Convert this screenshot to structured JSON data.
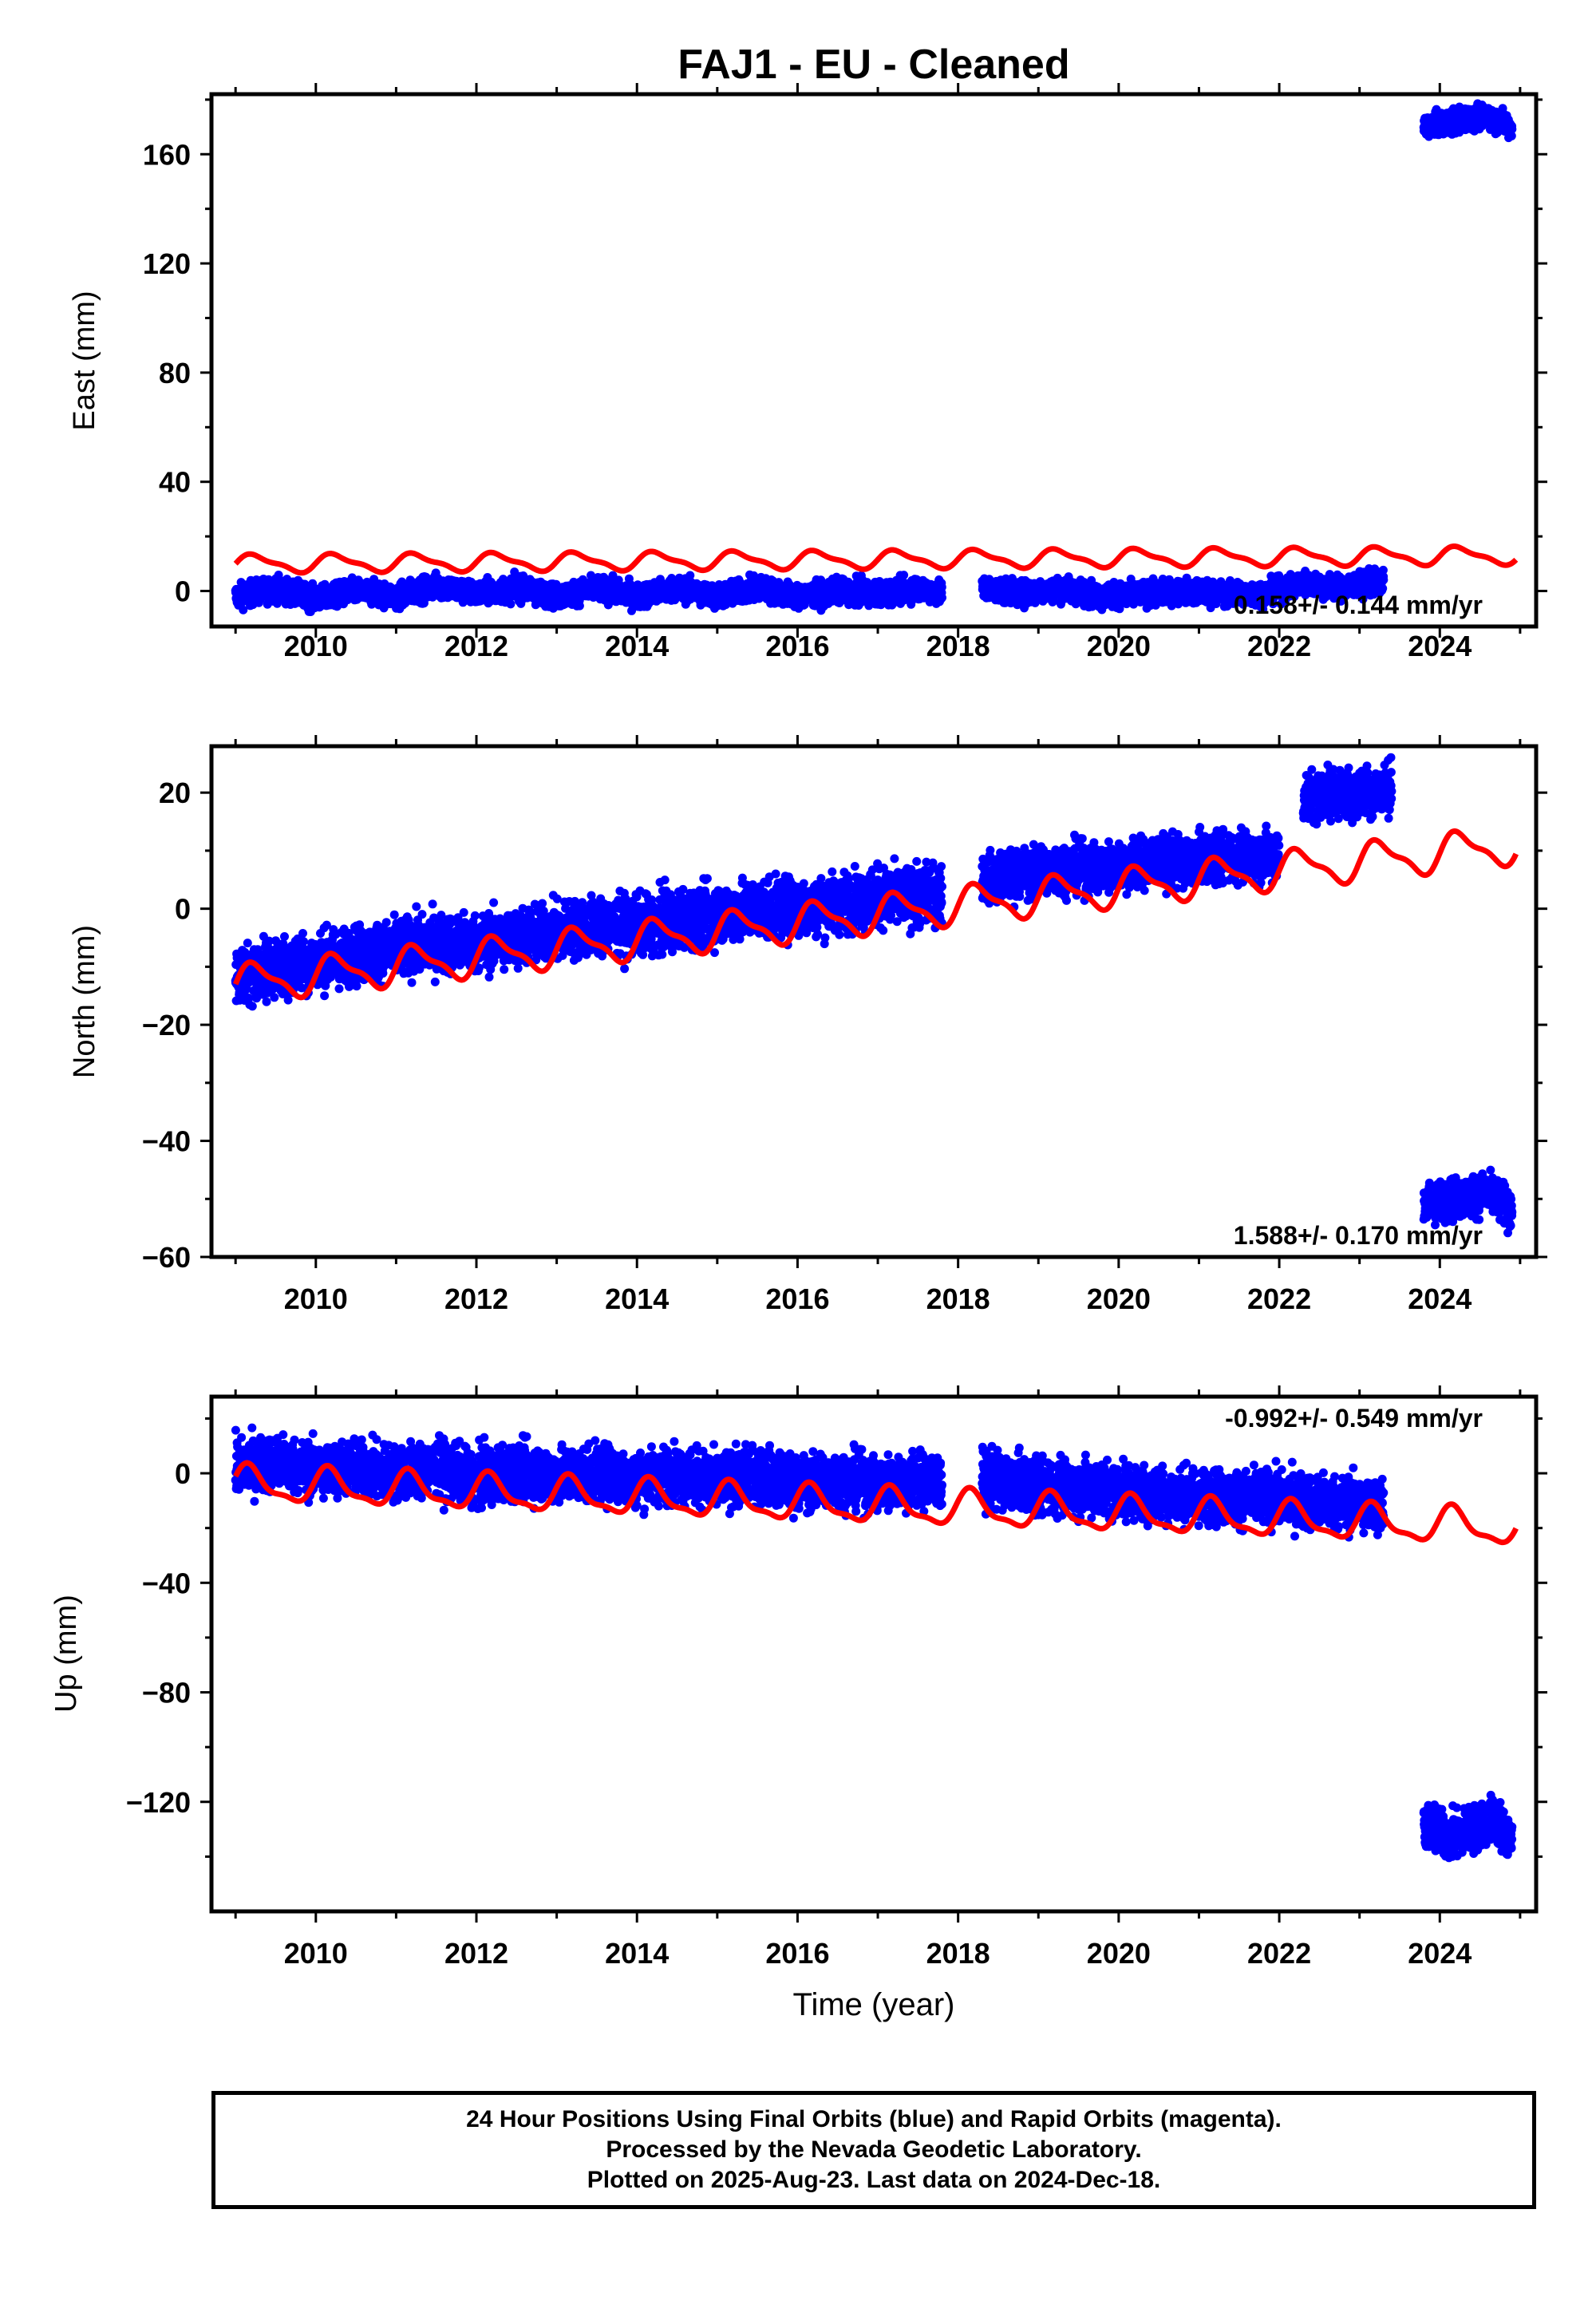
{
  "title": "FAJ1  - EU - Cleaned",
  "xlabel": "Time (year)",
  "footer": {
    "line1": "24 Hour Positions Using Final Orbits (blue) and Rapid Orbits (magenta).",
    "line2": "Processed by the Nevada Geodetic Laboratory.",
    "line3": "Plotted on 2025-Aug-23. Last data on 2024-Dec-18."
  },
  "colors": {
    "data": "#0000ff",
    "model": "#ff0000",
    "frame": "#000000"
  },
  "chart_data": [
    {
      "type": "scatter",
      "ylabel": "East (mm)",
      "rate_text": "0.158+/- 0.144 mm/yr",
      "xlim": [
        2008.7,
        2025.2
      ],
      "ylim": [
        -13,
        182
      ],
      "xticks": [
        2010,
        2012,
        2014,
        2016,
        2018,
        2020,
        2022,
        2024
      ],
      "yticks": [
        0,
        40,
        80,
        120,
        160
      ],
      "yticklabels": [
        "0",
        "40",
        "80",
        "120",
        "160"
      ],
      "data_segments": [
        {
          "x": [
            2009.0,
            2009.5,
            2010.0,
            2010.5,
            2011.0,
            2011.5,
            2012.0,
            2012.5,
            2013.0,
            2013.5,
            2014.0,
            2014.5,
            2015.0,
            2015.5,
            2016.0,
            2016.5,
            2017.0,
            2017.5,
            2017.8
          ],
          "y": [
            -2,
            1,
            -3,
            0,
            -2,
            2,
            -1,
            1,
            -2,
            1,
            -2,
            1,
            -2,
            1,
            -2,
            0,
            -1,
            1,
            -1
          ],
          "spread": 3
        },
        {
          "x": [
            2018.3,
            2018.8,
            2019.3,
            2019.8,
            2020.3,
            2020.8,
            2021.3,
            2021.8,
            2022.3,
            2022.8,
            2023.3
          ],
          "y": [
            1,
            -1,
            1,
            -2,
            -1,
            0,
            -1,
            -1,
            3,
            1,
            4
          ],
          "spread": 3
        },
        {
          "x": [
            2023.8,
            2024.0,
            2024.3,
            2024.6,
            2024.9
          ],
          "y": [
            170,
            171,
            173,
            174,
            170
          ],
          "spread": 3
        }
      ],
      "model": {
        "x0": 2009.0,
        "x1": 2024.95,
        "y0": 10,
        "y1": 13,
        "amp": 3,
        "phase": 0.0
      }
    },
    {
      "type": "scatter",
      "ylabel": "North (mm)",
      "rate_text": "1.588+/- 0.170 mm/yr",
      "xlim": [
        2008.7,
        2025.2
      ],
      "ylim": [
        -60,
        28
      ],
      "xticks": [
        2010,
        2012,
        2014,
        2016,
        2018,
        2020,
        2022,
        2024
      ],
      "yticks": [
        -60,
        -40,
        -20,
        0,
        20
      ],
      "yticklabels": [
        "−60",
        "−40",
        "−20",
        "0",
        "20"
      ],
      "data_segments": [
        {
          "x": [
            2009.0,
            2009.5,
            2010.0,
            2010.5,
            2011.0,
            2011.5,
            2012.0,
            2012.5,
            2013.0,
            2013.5,
            2014.0,
            2014.5,
            2015.0,
            2015.5,
            2016.0,
            2016.5,
            2017.0,
            2017.5,
            2017.8
          ],
          "y": [
            -12,
            -10,
            -9,
            -8,
            -7,
            -6,
            -6,
            -5,
            -4,
            -3,
            -3,
            -2,
            -1,
            0,
            0,
            1,
            2,
            2,
            3
          ],
          "spread": 3.5
        },
        {
          "x": [
            2018.3,
            2018.8,
            2019.3,
            2019.8,
            2020.3,
            2020.8,
            2021.3,
            2021.8,
            2022.0
          ],
          "y": [
            5,
            6,
            7,
            7,
            8,
            8,
            9,
            9,
            9
          ],
          "spread": 3
        },
        {
          "x": [
            2022.3,
            2022.7,
            2023.0,
            2023.4
          ],
          "y": [
            19,
            20,
            20,
            21
          ],
          "spread": 3
        },
        {
          "x": [
            2023.8,
            2024.2,
            2024.6,
            2024.9
          ],
          "y": [
            -51,
            -50,
            -49,
            -52
          ],
          "spread": 2.5
        }
      ],
      "model": {
        "x0": 2009.0,
        "x1": 2024.95,
        "y0": -13,
        "y1": 11,
        "amp": 3,
        "phase": 0.0
      }
    },
    {
      "type": "scatter",
      "ylabel": "Up (mm)",
      "rate_text": "-0.992+/- 0.549 mm/yr",
      "xlim": [
        2008.7,
        2025.2
      ],
      "ylim": [
        -160,
        28
      ],
      "xticks": [
        2010,
        2012,
        2014,
        2016,
        2018,
        2020,
        2022,
        2024
      ],
      "yticks": [
        -120,
        -80,
        -40,
        0
      ],
      "yticklabels": [
        "−120",
        "−80",
        "−40",
        "0"
      ],
      "data_segments": [
        {
          "x": [
            2009.0,
            2009.5,
            2010.0,
            2010.5,
            2011.0,
            2011.5,
            2012.0,
            2012.5,
            2013.0,
            2013.5,
            2014.0,
            2014.5,
            2015.0,
            2015.5,
            2016.0,
            2016.5,
            2017.0,
            2017.5,
            2017.8
          ],
          "y": [
            2,
            4,
            1,
            2,
            0,
            2,
            -2,
            1,
            -1,
            0,
            -2,
            0,
            -3,
            0,
            -4,
            -2,
            -4,
            -2,
            -4
          ],
          "spread": 7
        },
        {
          "x": [
            2018.3,
            2018.8,
            2019.3,
            2019.8,
            2020.3,
            2020.8,
            2021.3,
            2021.8,
            2022.3,
            2022.8,
            2023.3
          ],
          "y": [
            -2,
            -4,
            -5,
            -6,
            -7,
            -8,
            -9,
            -9,
            -10,
            -11,
            -12
          ],
          "spread": 7
        },
        {
          "x": [
            2023.8,
            2024.1,
            2024.4,
            2024.7,
            2024.9
          ],
          "y": [
            -128,
            -133,
            -130,
            -126,
            -135
          ],
          "spread": 6
        }
      ],
      "model": {
        "x0": 2009.0,
        "x1": 2024.95,
        "y0": -4,
        "y1": -20,
        "amp": 6,
        "phase": 0.5
      }
    }
  ]
}
